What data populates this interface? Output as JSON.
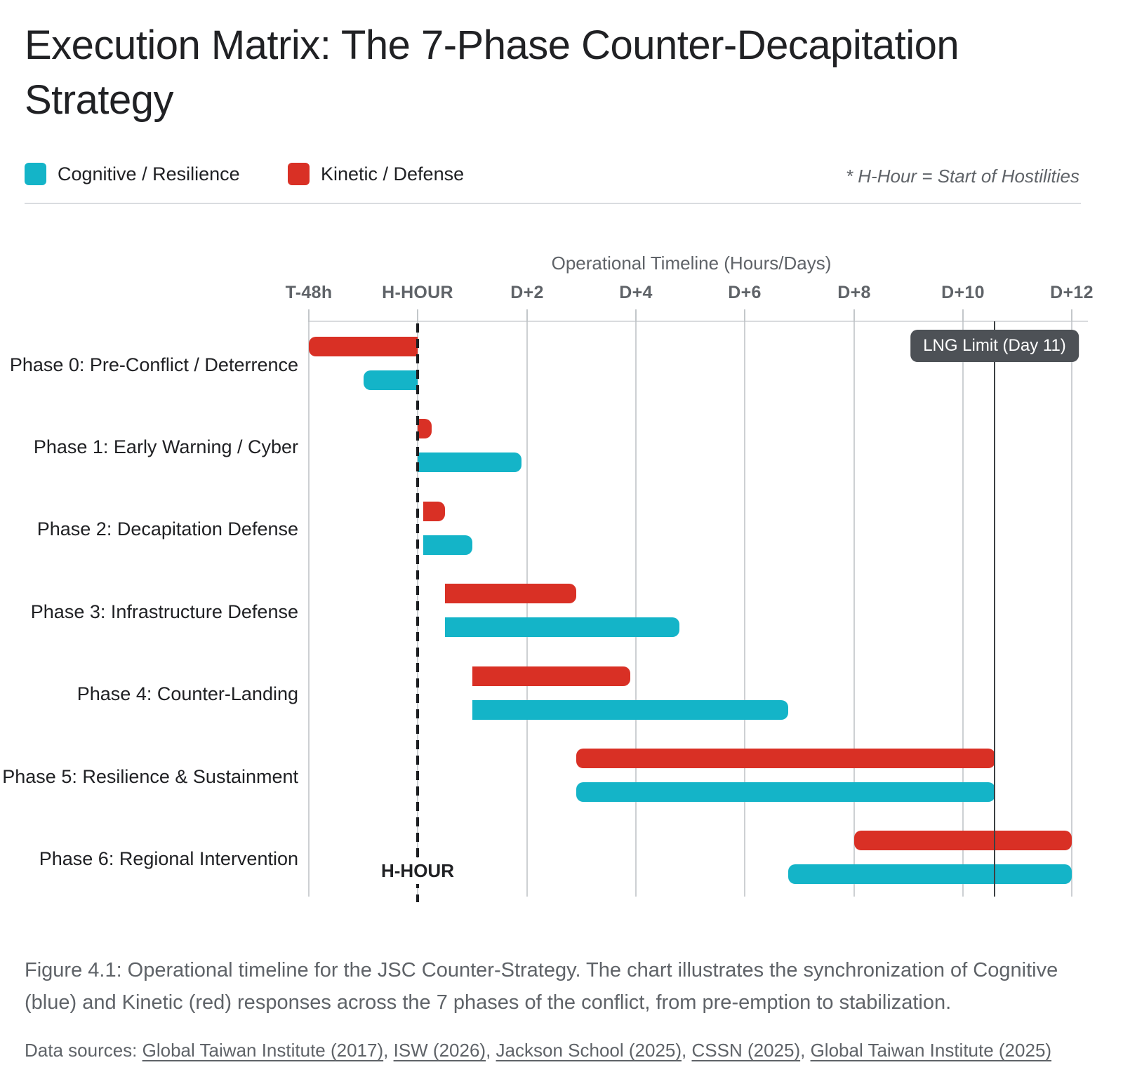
{
  "title": {
    "line1": "Execution Matrix: The 7-Phase Counter-Decapitation",
    "line2": "Strategy"
  },
  "legend": {
    "items": [
      {
        "label": "Cognitive / Resilience",
        "color": "#14b4c8"
      },
      {
        "label": "Kinetic / Defense",
        "color": "#d93025"
      }
    ],
    "note": "* H-Hour = Start of Hostilities"
  },
  "chart_data": {
    "type": "bar",
    "variant": "horizontal-gantt",
    "axis_title": "Operational Timeline (Hours/Days)",
    "x_unit": "days relative to H-Hour",
    "xlim": [
      -2,
      12
    ],
    "grid": true,
    "legend_position": "top",
    "ticks": [
      {
        "day": -2,
        "label": "T-48h"
      },
      {
        "day": 0,
        "label": "H-HOUR"
      },
      {
        "day": 2,
        "label": "D+2"
      },
      {
        "day": 4,
        "label": "D+4"
      },
      {
        "day": 6,
        "label": "D+6"
      },
      {
        "day": 8,
        "label": "D+8"
      },
      {
        "day": 10,
        "label": "D+10"
      },
      {
        "day": 12,
        "label": "D+12"
      }
    ],
    "series": [
      {
        "name": "Kinetic / Defense",
        "color": "#d93025"
      },
      {
        "name": "Cognitive / Resilience",
        "color": "#14b4c8"
      }
    ],
    "phases": [
      {
        "label": "Phase 0: Pre-Conflict / Deterrence",
        "kinetic": [
          -2.0,
          0.0
        ],
        "cognitive": [
          -1.0,
          0.0
        ],
        "bar_caps": "right-flat"
      },
      {
        "label": "Phase 1: Early Warning / Cyber",
        "kinetic": [
          0.0,
          0.25
        ],
        "cognitive": [
          0.0,
          1.9
        ],
        "bar_caps": "left-flat"
      },
      {
        "label": "Phase 2: Decapitation Defense",
        "kinetic": [
          0.1,
          0.5
        ],
        "cognitive": [
          0.1,
          1.0
        ],
        "bar_caps": "left-flat"
      },
      {
        "label": "Phase 3: Infrastructure Defense",
        "kinetic": [
          0.5,
          2.9
        ],
        "cognitive": [
          0.5,
          4.8
        ],
        "bar_caps": "left-flat"
      },
      {
        "label": "Phase 4: Counter-Landing",
        "kinetic": [
          1.0,
          3.9
        ],
        "cognitive": [
          1.0,
          6.8
        ],
        "bar_caps": "left-flat"
      },
      {
        "label": "Phase 5: Resilience & Sustainment",
        "kinetic": [
          2.9,
          10.6
        ],
        "cognitive": [
          2.9,
          10.6
        ],
        "bar_caps": "round"
      },
      {
        "label": "Phase 6: Regional Intervention",
        "kinetic": [
          8.0,
          12.0
        ],
        "cognitive": [
          6.8,
          12.0
        ],
        "bar_caps": "round"
      }
    ],
    "hhour_line": {
      "day": 0,
      "floor_label": "H-HOUR",
      "style": "dashed-black"
    },
    "annotation_line": {
      "day": 10.58,
      "label": "LNG Limit (Day 11)",
      "style": "solid-dark"
    }
  },
  "caption": "Figure 4.1: Operational timeline for the JSC Counter-Strategy. The chart illustrates the synchronization of Cognitive (blue) and Kinetic (red) responses across the 7 phases of the conflict, from pre-emption to stabilization.",
  "sources": {
    "prefix": "Data sources: ",
    "separator": ", ",
    "links": [
      "Global Taiwan Institute (2017)",
      "ISW (2026)",
      "Jackson School (2025)",
      "CSSN (2025)",
      "Global Taiwan Institute (2025)"
    ]
  }
}
